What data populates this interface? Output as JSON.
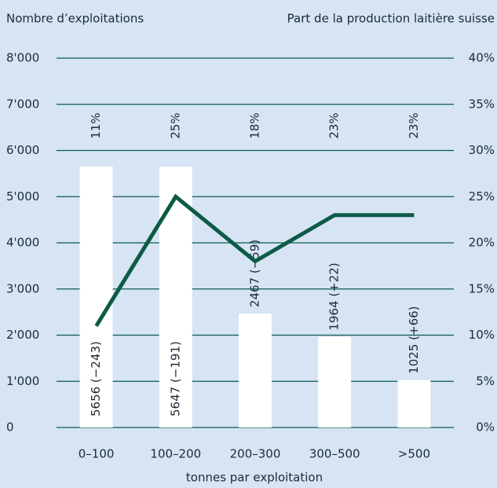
{
  "chart_data": {
    "type": "combo",
    "y_title": "Nombre d’exploitations",
    "y2_title": "Part de la production laitière suisse",
    "x_title": "tonnes par exploitation",
    "categories": [
      "0–100",
      "100–200",
      "200–300",
      "300–500",
      ">500"
    ],
    "series": [
      {
        "type": "bar",
        "color": "#ffffff",
        "values": [
          5656,
          5647,
          2467,
          1964,
          1025
        ],
        "value_labels": [
          "5656 (−243)",
          "5647 (−191)",
          "2467 (−59)",
          "1964 (+22)",
          "1025 (+66)"
        ]
      },
      {
        "type": "line",
        "axis": "y2",
        "color": "#0d5a47",
        "values": [
          11,
          25,
          18,
          23,
          23
        ],
        "value_labels": [
          "11%",
          "25%",
          "18%",
          "23%",
          "23%"
        ]
      }
    ],
    "ylim": [
      0,
      8000
    ],
    "yticks": [
      0,
      {
        "value": 1000,
        "label": "1'000"
      },
      {
        "value": 2000,
        "label": "2'000"
      },
      {
        "value": 3000,
        "label": "3'000"
      },
      {
        "value": 4000,
        "label": "4'000"
      },
      {
        "value": 5000,
        "label": "5'000"
      },
      {
        "value": 6000,
        "label": "6'000"
      },
      {
        "value": 7000,
        "label": "7'000"
      },
      {
        "value": 8000,
        "label": "8'000"
      }
    ],
    "y2lim": [
      0,
      40
    ],
    "y2ticks": [
      {
        "value": 0,
        "label": "0%"
      },
      {
        "value": 5,
        "label": "5%"
      },
      {
        "value": 10,
        "label": "10%"
      },
      {
        "value": 15,
        "label": "15%"
      },
      {
        "value": 20,
        "label": "20%"
      },
      {
        "value": 25,
        "label": "25%"
      },
      {
        "value": 30,
        "label": "30%"
      },
      {
        "value": 35,
        "label": "35%"
      },
      {
        "value": 40,
        "label": "40%"
      }
    ],
    "grid": true
  }
}
